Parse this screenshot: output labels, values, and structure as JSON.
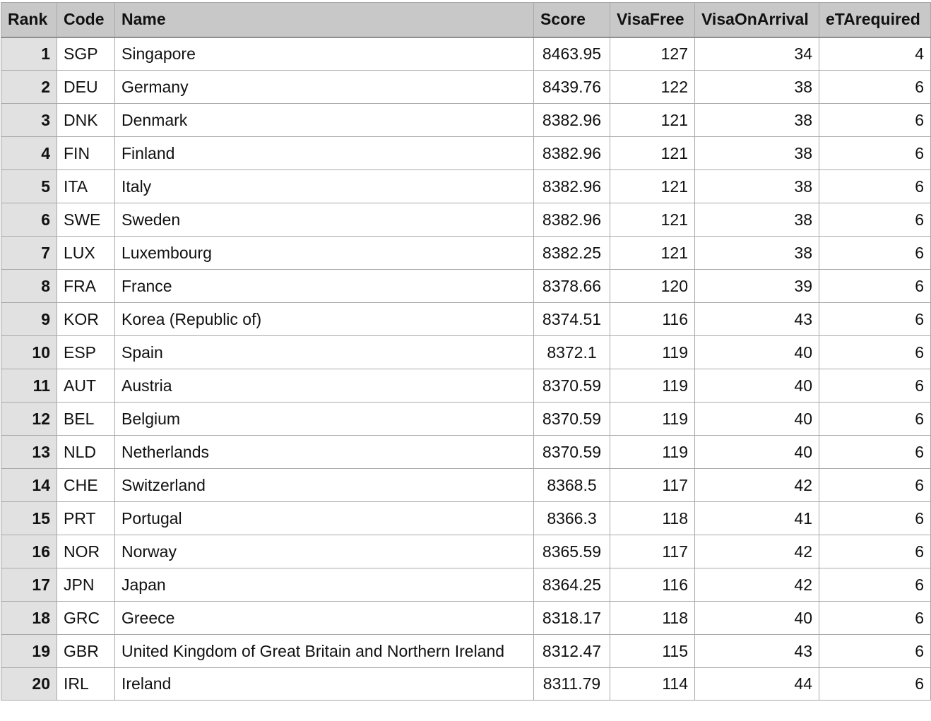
{
  "columns": [
    "Rank",
    "Code",
    "Name",
    "Score",
    "VisaFree",
    "VisaOnArrival",
    "eTArequired"
  ],
  "rows": [
    {
      "rank": "1",
      "code": "SGP",
      "name": "Singapore",
      "score": "8463.95",
      "visa_free": "127",
      "visa_on_arrival": "34",
      "eta_required": "4"
    },
    {
      "rank": "2",
      "code": "DEU",
      "name": "Germany",
      "score": "8439.76",
      "visa_free": "122",
      "visa_on_arrival": "38",
      "eta_required": "6"
    },
    {
      "rank": "3",
      "code": "DNK",
      "name": "Denmark",
      "score": "8382.96",
      "visa_free": "121",
      "visa_on_arrival": "38",
      "eta_required": "6"
    },
    {
      "rank": "4",
      "code": "FIN",
      "name": "Finland",
      "score": "8382.96",
      "visa_free": "121",
      "visa_on_arrival": "38",
      "eta_required": "6"
    },
    {
      "rank": "5",
      "code": "ITA",
      "name": "Italy",
      "score": "8382.96",
      "visa_free": "121",
      "visa_on_arrival": "38",
      "eta_required": "6"
    },
    {
      "rank": "6",
      "code": "SWE",
      "name": "Sweden",
      "score": "8382.96",
      "visa_free": "121",
      "visa_on_arrival": "38",
      "eta_required": "6"
    },
    {
      "rank": "7",
      "code": "LUX",
      "name": "Luxembourg",
      "score": "8382.25",
      "visa_free": "121",
      "visa_on_arrival": "38",
      "eta_required": "6"
    },
    {
      "rank": "8",
      "code": "FRA",
      "name": "France",
      "score": "8378.66",
      "visa_free": "120",
      "visa_on_arrival": "39",
      "eta_required": "6"
    },
    {
      "rank": "9",
      "code": "KOR",
      "name": "Korea (Republic of)",
      "score": "8374.51",
      "visa_free": "116",
      "visa_on_arrival": "43",
      "eta_required": "6"
    },
    {
      "rank": "10",
      "code": "ESP",
      "name": "Spain",
      "score": "8372.1",
      "visa_free": "119",
      "visa_on_arrival": "40",
      "eta_required": "6"
    },
    {
      "rank": "11",
      "code": "AUT",
      "name": "Austria",
      "score": "8370.59",
      "visa_free": "119",
      "visa_on_arrival": "40",
      "eta_required": "6"
    },
    {
      "rank": "12",
      "code": "BEL",
      "name": "Belgium",
      "score": "8370.59",
      "visa_free": "119",
      "visa_on_arrival": "40",
      "eta_required": "6"
    },
    {
      "rank": "13",
      "code": "NLD",
      "name": "Netherlands",
      "score": "8370.59",
      "visa_free": "119",
      "visa_on_arrival": "40",
      "eta_required": "6"
    },
    {
      "rank": "14",
      "code": "CHE",
      "name": "Switzerland",
      "score": "8368.5",
      "visa_free": "117",
      "visa_on_arrival": "42",
      "eta_required": "6"
    },
    {
      "rank": "15",
      "code": "PRT",
      "name": "Portugal",
      "score": "8366.3",
      "visa_free": "118",
      "visa_on_arrival": "41",
      "eta_required": "6"
    },
    {
      "rank": "16",
      "code": "NOR",
      "name": "Norway",
      "score": "8365.59",
      "visa_free": "117",
      "visa_on_arrival": "42",
      "eta_required": "6"
    },
    {
      "rank": "17",
      "code": "JPN",
      "name": "Japan",
      "score": "8364.25",
      "visa_free": "116",
      "visa_on_arrival": "42",
      "eta_required": "6"
    },
    {
      "rank": "18",
      "code": "GRC",
      "name": "Greece",
      "score": "8318.17",
      "visa_free": "118",
      "visa_on_arrival": "40",
      "eta_required": "6"
    },
    {
      "rank": "19",
      "code": "GBR",
      "name": "United Kingdom of Great Britain and Northern Ireland",
      "score": "8312.47",
      "visa_free": "115",
      "visa_on_arrival": "43",
      "eta_required": "6"
    },
    {
      "rank": "20",
      "code": "IRL",
      "name": "Ireland",
      "score": "8311.79",
      "visa_free": "114",
      "visa_on_arrival": "44",
      "eta_required": "6"
    }
  ]
}
